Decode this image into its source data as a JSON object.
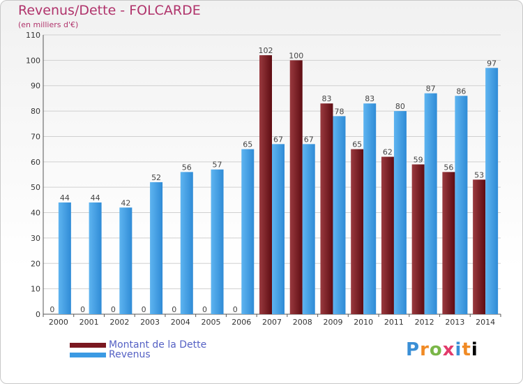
{
  "header": {
    "title": "Revenus/Dette - FOLCARDE",
    "subtitle": "(en milliers d'€)"
  },
  "logo": {
    "text": "Proxiti"
  },
  "colors": {
    "dette": "#7a1820",
    "revenus": "#3b9ae3",
    "axis_text": "#333333",
    "grid": "#d0d0d0"
  },
  "chart_data": {
    "type": "bar",
    "title": "Revenus/Dette - FOLCARDE",
    "subtitle": "(en milliers d'€)",
    "xlabel": "",
    "ylabel": "",
    "ylim": [
      0,
      110
    ],
    "yticks": [
      0,
      10,
      20,
      30,
      40,
      50,
      60,
      70,
      80,
      90,
      100,
      110
    ],
    "grid": true,
    "legend_position": "bottom-left",
    "categories": [
      "2000",
      "2001",
      "2002",
      "2003",
      "2004",
      "2005",
      "2006",
      "2007",
      "2008",
      "2009",
      "2010",
      "2011",
      "2012",
      "2013",
      "2014"
    ],
    "series": [
      {
        "name": "Montant de la Dette",
        "values": [
          0,
          0,
          0,
          0,
          0,
          0,
          0,
          102,
          100,
          83,
          65,
          62,
          59,
          56,
          53
        ]
      },
      {
        "name": "Revenus",
        "values": [
          44,
          44,
          42,
          52,
          56,
          57,
          65,
          67,
          67,
          78,
          83,
          80,
          87,
          86,
          97
        ]
      }
    ]
  }
}
